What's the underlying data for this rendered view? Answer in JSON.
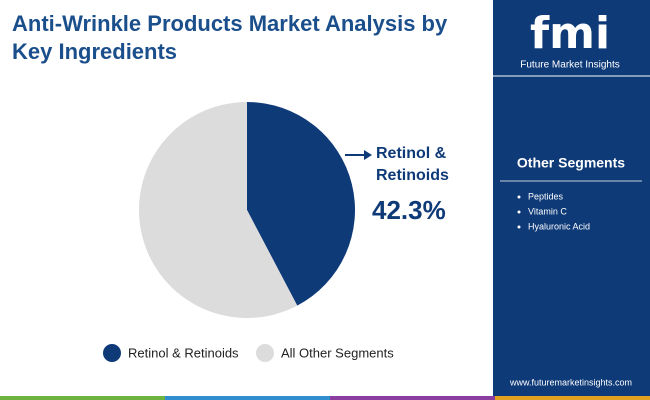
{
  "header": {
    "title": "Anti-Wrinkle Products Market Analysis by Key Ingredients"
  },
  "chart_data": {
    "type": "pie",
    "categories": [
      "Retinol & Retinoids",
      "All Other Segments"
    ],
    "values": [
      42.3,
      57.7
    ],
    "value_labels": [
      "42.3%",
      null
    ],
    "colors": [
      "#0e3a78",
      "#dcdcdc"
    ],
    "legend": "bottom"
  },
  "sidebar": {
    "logo": "fmi",
    "brand": "Future Market Insights",
    "heading": "Other Segments",
    "items": [
      "Peptides",
      "Vitamin C",
      "Hyaluronic Acid"
    ],
    "website": "www.futuremarketinsights.com"
  }
}
